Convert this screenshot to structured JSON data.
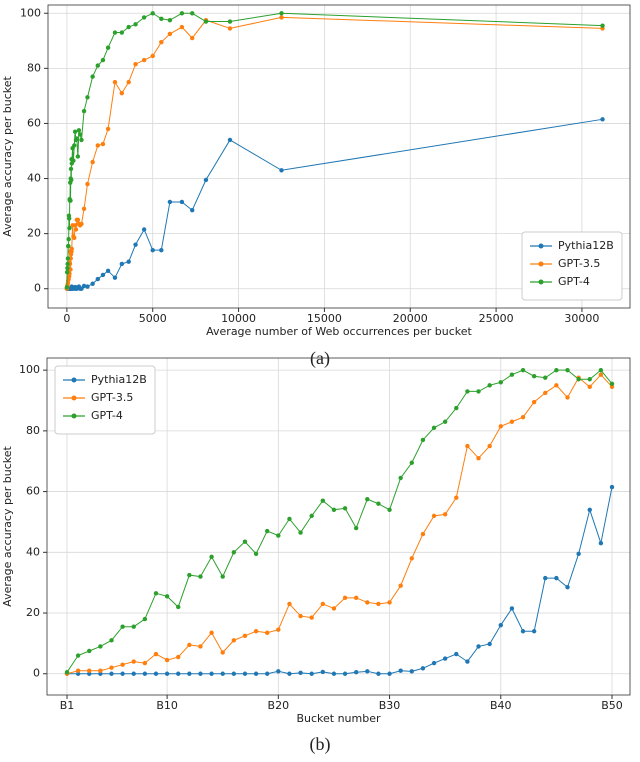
{
  "captions": [
    "(a)",
    "(b)"
  ],
  "chart_data": [
    {
      "type": "line",
      "xlabel": "Average number of Web occurrences per bucket",
      "ylabel": "Average accuracy per bucket",
      "x": [
        0,
        15,
        30,
        45,
        60,
        75,
        90,
        105,
        120,
        135,
        150,
        165,
        180,
        195,
        210,
        225,
        240,
        255,
        270,
        285,
        330,
        380,
        430,
        480,
        530,
        580,
        640,
        700,
        770,
        850,
        1000,
        1200,
        1500,
        1800,
        2100,
        2400,
        2800,
        3200,
        3600,
        4000,
        4500,
        5000,
        5500,
        6000,
        6700,
        7300,
        8100,
        9500,
        12500,
        31200
      ],
      "xlim": [
        -1100,
        32800
      ],
      "xticks": [
        0,
        5000,
        10000,
        15000,
        20000,
        25000,
        30000
      ],
      "ylim": [
        -7,
        103
      ],
      "yticks": [
        0,
        20,
        40,
        60,
        80,
        100
      ],
      "grid": true,
      "legend": "lower right",
      "series": [
        {
          "name": "Pythia12B",
          "color": "#1f77b4",
          "values": [
            0,
            0,
            0,
            0,
            0,
            0,
            0,
            0,
            0,
            0,
            0,
            0,
            0,
            0,
            0,
            0,
            0,
            0,
            0,
            0.8,
            0,
            0.3,
            0,
            0.6,
            0,
            0,
            0.5,
            0.8,
            0,
            0,
            1,
            0.8,
            1.8,
            3.5,
            5,
            6.5,
            4,
            9,
            9.8,
            16,
            21.5,
            14,
            14,
            31.5,
            31.5,
            28.5,
            39.5,
            54,
            43,
            61.5
          ]
        },
        {
          "name": "GPT-3.5",
          "color": "#ff7f0e",
          "values": [
            0,
            1,
            1,
            1,
            2,
            3,
            4,
            3.5,
            6.5,
            4.5,
            5.5,
            9.5,
            9,
            13.5,
            7,
            11,
            12.5,
            14,
            13.5,
            14.5,
            23,
            19,
            18.5,
            23,
            21.5,
            25,
            25,
            23.5,
            23,
            23.5,
            29,
            38,
            46,
            52,
            52.5,
            58,
            75,
            71,
            75,
            81.5,
            83,
            84.5,
            89.5,
            92.5,
            95,
            91,
            97.5,
            94.5,
            98.5,
            94.5
          ]
        },
        {
          "name": "GPT-4",
          "color": "#2ca02c",
          "values": [
            0.5,
            6,
            7.5,
            9,
            11,
            15.5,
            15.5,
            18,
            26.5,
            25.5,
            22,
            32.5,
            32,
            38.5,
            32,
            40,
            43.5,
            39.5,
            47,
            45.5,
            51,
            46.5,
            52,
            57,
            54,
            54.5,
            48,
            57.5,
            56,
            54,
            64.5,
            69.5,
            77,
            81,
            83,
            87.5,
            93,
            93,
            95,
            96,
            98.5,
            100,
            98,
            97.5,
            100,
            100,
            97,
            97,
            100,
            95.5
          ]
        }
      ]
    },
    {
      "type": "line",
      "xlabel": "Bucket number",
      "ylabel": "Average accuracy per bucket",
      "categories": [
        "B1",
        null,
        null,
        null,
        null,
        null,
        null,
        null,
        null,
        "B10",
        null,
        null,
        null,
        null,
        null,
        null,
        null,
        null,
        null,
        "B20",
        null,
        null,
        null,
        null,
        null,
        null,
        null,
        null,
        null,
        "B30",
        null,
        null,
        null,
        null,
        null,
        null,
        null,
        null,
        null,
        "B40",
        null,
        null,
        null,
        null,
        null,
        null,
        null,
        null,
        null,
        "B50"
      ],
      "ylim": [
        -7,
        104
      ],
      "yticks": [
        0,
        20,
        40,
        60,
        80,
        100
      ],
      "grid": true,
      "legend": "upper left",
      "series": [
        {
          "name": "Pythia12B",
          "color": "#1f77b4",
          "values": [
            0,
            0,
            0,
            0,
            0,
            0,
            0,
            0,
            0,
            0,
            0,
            0,
            0,
            0,
            0,
            0,
            0,
            0,
            0,
            0.8,
            0,
            0.3,
            0,
            0.6,
            0,
            0,
            0.5,
            0.8,
            0,
            0,
            1,
            0.8,
            1.8,
            3.5,
            5,
            6.5,
            4,
            9,
            9.8,
            16,
            21.5,
            14,
            14,
            31.5,
            31.5,
            28.5,
            39.5,
            54,
            43,
            61.5
          ]
        },
        {
          "name": "GPT-3.5",
          "color": "#ff7f0e",
          "values": [
            0,
            1,
            1,
            1,
            2,
            3,
            4,
            3.5,
            6.5,
            4.5,
            5.5,
            9.5,
            9,
            13.5,
            7,
            11,
            12.5,
            14,
            13.5,
            14.5,
            23,
            19,
            18.5,
            23,
            21.5,
            25,
            25,
            23.5,
            23,
            23.5,
            29,
            38,
            46,
            52,
            52.5,
            58,
            75,
            71,
            75,
            81.5,
            83,
            84.5,
            89.5,
            92.5,
            95,
            91,
            97.5,
            94.5,
            98.5,
            94.5
          ]
        },
        {
          "name": "GPT-4",
          "color": "#2ca02c",
          "values": [
            0.5,
            6,
            7.5,
            9,
            11,
            15.5,
            15.5,
            18,
            26.5,
            25.5,
            22,
            32.5,
            32,
            38.5,
            32,
            40,
            43.5,
            39.5,
            47,
            45.5,
            51,
            46.5,
            52,
            57,
            54,
            54.5,
            48,
            57.5,
            56,
            54,
            64.5,
            69.5,
            77,
            81,
            83,
            87.5,
            93,
            93,
            95,
            96,
            98.5,
            100,
            98,
            97.5,
            100,
            100,
            97,
            97,
            100,
            95.5
          ]
        }
      ]
    }
  ]
}
